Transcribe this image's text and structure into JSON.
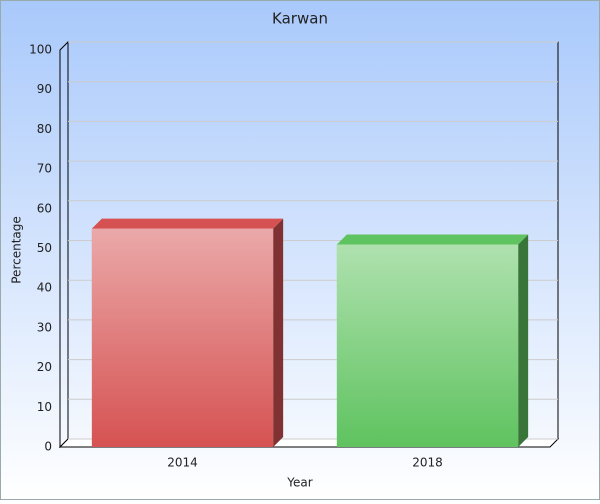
{
  "chart_data": {
    "type": "bar",
    "title": "Karwan",
    "x_label": "Year",
    "y_label": "Percentage",
    "categories": [
      "2014",
      "2018"
    ],
    "values": [
      55,
      51
    ],
    "colors": [
      "#d65252",
      "#5fc35f"
    ],
    "ylim": [
      0,
      100
    ],
    "yticks": [
      0,
      10,
      20,
      30,
      40,
      50,
      60,
      70,
      80,
      90,
      100
    ],
    "grid": true
  }
}
